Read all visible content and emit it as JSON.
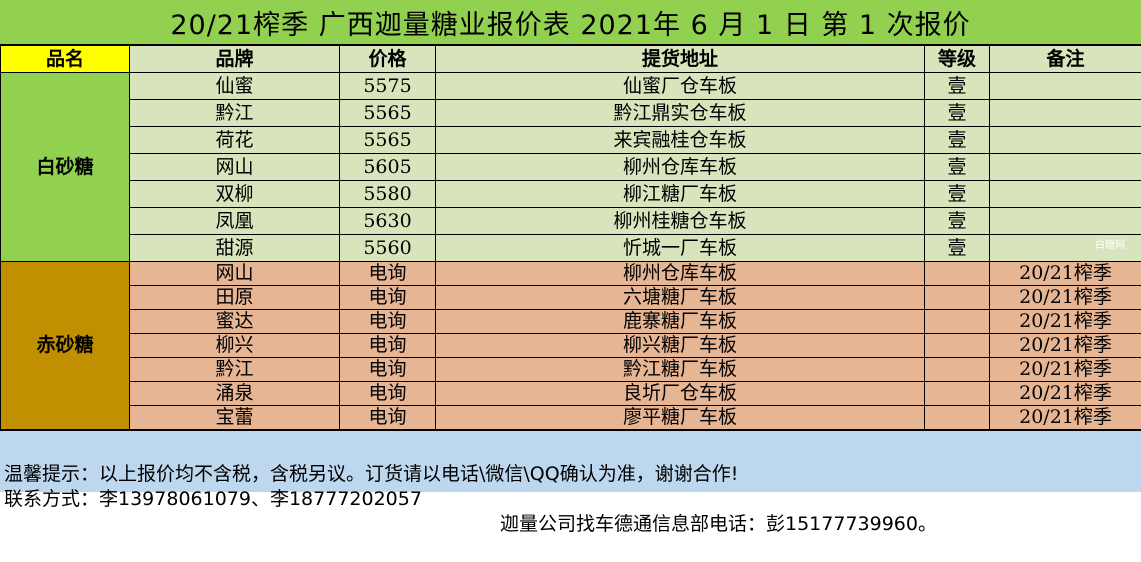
{
  "title": "20/21榨季 广西迦量糖业报价表 2021年 6 月 1 日 第 1 次报价",
  "headers": {
    "category": "品名",
    "brand": "品牌",
    "price": "价格",
    "location": "提货地址",
    "grade": "等级",
    "note": "备注"
  },
  "white_sugar": {
    "category": "白砂糖",
    "rows": [
      {
        "brand": "仙蜜",
        "price": "5575",
        "location": "仙蜜厂仓车板",
        "grade": "壹",
        "note": ""
      },
      {
        "brand": "黔江",
        "price": "5565",
        "location": "黔江鼎实仓车板",
        "grade": "壹",
        "note": ""
      },
      {
        "brand": "荷花",
        "price": "5565",
        "location": "来宾融桂仓车板",
        "grade": "壹",
        "note": ""
      },
      {
        "brand": "网山",
        "price": "5605",
        "location": "柳州仓库车板",
        "grade": "壹",
        "note": ""
      },
      {
        "brand": "双柳",
        "price": "5580",
        "location": "柳江糖厂车板",
        "grade": "壹",
        "note": ""
      },
      {
        "brand": "凤凰",
        "price": "5630",
        "location": "柳州桂糖仓车板",
        "grade": "壹",
        "note": ""
      },
      {
        "brand": "甜源",
        "price": "5560",
        "location": "忻城一厂车板",
        "grade": "壹",
        "note": ""
      }
    ]
  },
  "watermark": "白糖网",
  "red_sugar": {
    "category": "赤砂糖",
    "rows": [
      {
        "brand": "网山",
        "price": "电询",
        "location": "柳州仓库车板",
        "grade": "",
        "note": "20/21榨季"
      },
      {
        "brand": "田原",
        "price": "电询",
        "location": "六塘糖厂车板",
        "grade": "",
        "note": "20/21榨季"
      },
      {
        "brand": "蜜达",
        "price": "电询",
        "location": "鹿寨糖厂车板",
        "grade": "",
        "note": "20/21榨季"
      },
      {
        "brand": "柳兴",
        "price": "电询",
        "location": "柳兴糖厂车板",
        "grade": "",
        "note": "20/21榨季"
      },
      {
        "brand": "黔江",
        "price": "电询",
        "location": "黔江糖厂车板",
        "grade": "",
        "note": "20/21榨季"
      },
      {
        "brand": "涌泉",
        "price": "电询",
        "location": "良圻厂仓车板",
        "grade": "",
        "note": "20/21榨季"
      },
      {
        "brand": "宝蕾",
        "price": "电询",
        "location": "廖平糖厂车板",
        "grade": "",
        "note": "20/21榨季"
      }
    ]
  },
  "footer": {
    "tip": "温馨提示：以上报价均不含税，含税另议。订货请以电话\\微信\\QQ确认为准，谢谢合作!",
    "contact": "联系方式：李13978061079、李18777202057",
    "contact2": "迦量公司找车德通信息部电话：彭15177739960。"
  }
}
